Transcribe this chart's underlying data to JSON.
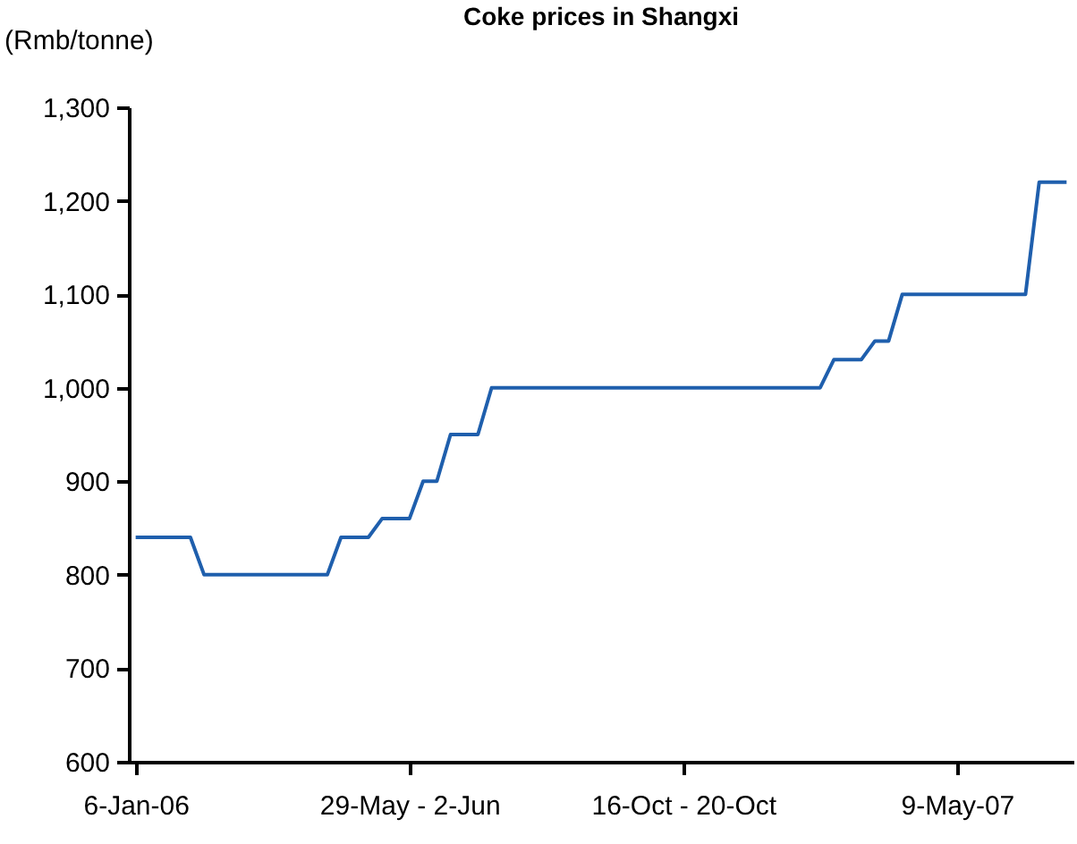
{
  "chart_data": {
    "type": "line",
    "title": "Coke prices in Shangxi",
    "ylabel": "(Rmb/tonne)",
    "categories": [
      "6-Jan-06",
      null,
      null,
      null,
      null,
      null,
      null,
      null,
      null,
      null,
      null,
      null,
      null,
      null,
      null,
      null,
      null,
      null,
      null,
      null,
      "29-May - 2-Jun",
      null,
      null,
      null,
      null,
      null,
      null,
      null,
      null,
      null,
      null,
      null,
      null,
      null,
      null,
      null,
      null,
      null,
      null,
      null,
      "16-Oct - 20-Oct",
      null,
      null,
      null,
      null,
      null,
      null,
      null,
      null,
      null,
      null,
      null,
      null,
      null,
      null,
      null,
      null,
      null,
      null,
      null,
      "9-May-07",
      null,
      null,
      null,
      null,
      null,
      null,
      null,
      null
    ],
    "values": [
      840,
      840,
      840,
      840,
      840,
      800,
      800,
      800,
      800,
      800,
      800,
      800,
      800,
      800,
      800,
      840,
      840,
      840,
      860,
      860,
      860,
      900,
      900,
      950,
      950,
      950,
      1000,
      1000,
      1000,
      1000,
      1000,
      1000,
      1000,
      1000,
      1000,
      1000,
      1000,
      1000,
      1000,
      1000,
      1000,
      1000,
      1000,
      1000,
      1000,
      1000,
      1000,
      1000,
      1000,
      1000,
      1000,
      1030,
      1030,
      1030,
      1050,
      1050,
      1100,
      1100,
      1100,
      1100,
      1100,
      1100,
      1100,
      1100,
      1100,
      1100,
      1220,
      1220,
      1220
    ],
    "color": "#1f5fad",
    "ylim": [
      600,
      1300
    ],
    "yticks": [
      600,
      700,
      800,
      900,
      {
        "value": 1000,
        "label": "1,000"
      },
      {
        "value": 1100,
        "label": "1,100"
      },
      {
        "value": 1200,
        "label": "1,200"
      },
      {
        "value": 1300,
        "label": "1,300"
      }
    ],
    "grid": false
  }
}
